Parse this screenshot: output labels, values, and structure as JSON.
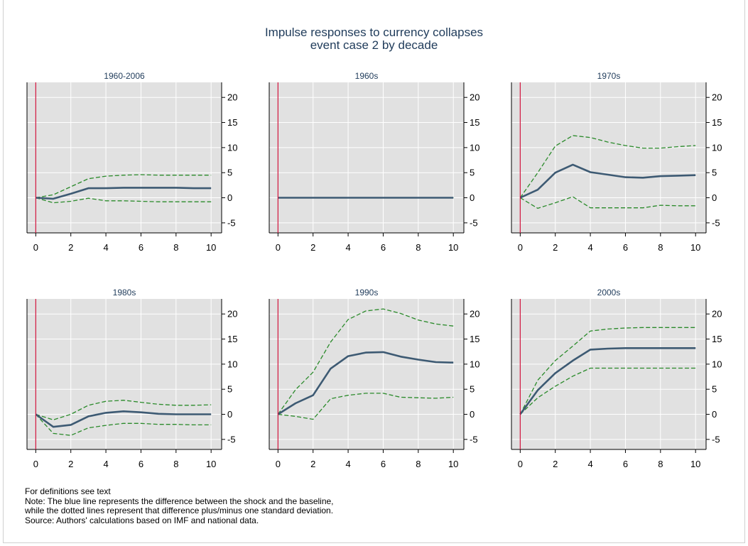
{
  "title": "Impulse responses to currency collapses",
  "subtitle": "event case 2 by decade",
  "notes": [
    "For definitions see text",
    "Note: The blue line represents the difference between the shock and the baseline,",
    "while the dotted lines represent that difference plus/minus one standard deviation.",
    "Source: Authors' calculations based on IMF and national data."
  ],
  "colors": {
    "panel_bg": "#e1e1e1",
    "response": "#3d5a73",
    "band": "#2a8a2a",
    "shock_line": "#d0103a",
    "title": "#1f3b5a"
  },
  "chart_data": [
    {
      "type": "line",
      "title": "1960-2006",
      "x": [
        0,
        1,
        2,
        3,
        4,
        5,
        6,
        7,
        8,
        9,
        10
      ],
      "xticks": [
        0,
        2,
        4,
        6,
        8,
        10
      ],
      "yticks": [
        -5,
        0,
        5,
        10,
        15,
        20
      ],
      "xlim": [
        -0.5,
        10.6
      ],
      "ylim": [
        -7,
        23
      ],
      "grid": true,
      "series": [
        {
          "role": "response",
          "values": [
            0,
            -0.2,
            0.8,
            1.9,
            1.9,
            2.0,
            2.0,
            2.0,
            2.0,
            1.9,
            1.9
          ]
        },
        {
          "role": "upper",
          "values": [
            0,
            0.6,
            2.2,
            3.8,
            4.3,
            4.5,
            4.6,
            4.5,
            4.5,
            4.5,
            4.5
          ]
        },
        {
          "role": "lower",
          "values": [
            0,
            -1.0,
            -0.7,
            -0.1,
            -0.6,
            -0.6,
            -0.7,
            -0.8,
            -0.8,
            -0.8,
            -0.8
          ]
        }
      ]
    },
    {
      "type": "line",
      "title": "1960s",
      "x": [
        0,
        1,
        2,
        3,
        4,
        5,
        6,
        7,
        8,
        9,
        10
      ],
      "xticks": [
        0,
        2,
        4,
        6,
        8,
        10
      ],
      "yticks": [
        -5,
        0,
        5,
        10,
        15,
        20
      ],
      "xlim": [
        -0.5,
        10.6
      ],
      "ylim": [
        -7,
        23
      ],
      "grid": true,
      "series": [
        {
          "role": "response",
          "values": [
            0,
            0,
            0,
            0,
            0,
            0,
            0,
            0,
            0,
            0,
            0
          ]
        },
        {
          "role": "upper",
          "values": [
            0,
            0,
            0,
            0,
            0,
            0,
            0,
            0,
            0,
            0,
            0
          ]
        },
        {
          "role": "lower",
          "values": [
            0,
            0,
            0,
            0,
            0,
            0,
            0,
            0,
            0,
            0,
            0
          ]
        }
      ]
    },
    {
      "type": "line",
      "title": "1970s",
      "x": [
        0,
        1,
        2,
        3,
        4,
        5,
        6,
        7,
        8,
        9,
        10
      ],
      "xticks": [
        0,
        2,
        4,
        6,
        8,
        10
      ],
      "yticks": [
        -5,
        0,
        5,
        10,
        15,
        20
      ],
      "xlim": [
        -0.5,
        10.6
      ],
      "ylim": [
        -7,
        23
      ],
      "grid": true,
      "series": [
        {
          "role": "response",
          "values": [
            0,
            1.6,
            5.0,
            6.6,
            5.1,
            4.6,
            4.1,
            4.0,
            4.3,
            4.4,
            4.5
          ]
        },
        {
          "role": "upper",
          "values": [
            0,
            5.0,
            10.3,
            12.4,
            12.0,
            11.1,
            10.4,
            9.9,
            9.9,
            10.2,
            10.4
          ]
        },
        {
          "role": "lower",
          "values": [
            0,
            -2.1,
            -1.0,
            0.2,
            -2.0,
            -2.0,
            -2.0,
            -2.0,
            -1.5,
            -1.6,
            -1.6
          ]
        }
      ]
    },
    {
      "type": "line",
      "title": "1980s",
      "x": [
        0,
        1,
        2,
        3,
        4,
        5,
        6,
        7,
        8,
        9,
        10
      ],
      "xticks": [
        0,
        2,
        4,
        6,
        8,
        10
      ],
      "yticks": [
        -5,
        0,
        5,
        10,
        15,
        20
      ],
      "xlim": [
        -0.5,
        10.6
      ],
      "ylim": [
        -7,
        23
      ],
      "grid": true,
      "series": [
        {
          "role": "response",
          "values": [
            0,
            -2.5,
            -2.1,
            -0.4,
            0.3,
            0.6,
            0.4,
            0.1,
            0.0,
            0.0,
            0.0
          ]
        },
        {
          "role": "upper",
          "values": [
            0,
            -1.1,
            0,
            1.8,
            2.6,
            2.8,
            2.4,
            2.0,
            1.8,
            1.8,
            1.9
          ]
        },
        {
          "role": "lower",
          "values": [
            0,
            -3.8,
            -4.2,
            -2.7,
            -2.2,
            -1.8,
            -1.8,
            -2.0,
            -2.0,
            -2.1,
            -2.1
          ]
        }
      ]
    },
    {
      "type": "line",
      "title": "1990s",
      "x": [
        0,
        1,
        2,
        3,
        4,
        5,
        6,
        7,
        8,
        9,
        10
      ],
      "xticks": [
        0,
        2,
        4,
        6,
        8,
        10
      ],
      "yticks": [
        -5,
        0,
        5,
        10,
        15,
        20
      ],
      "xlim": [
        -0.5,
        10.6
      ],
      "ylim": [
        -7,
        23
      ],
      "grid": true,
      "series": [
        {
          "role": "response",
          "values": [
            0,
            2.2,
            3.8,
            9.1,
            11.6,
            12.3,
            12.4,
            11.5,
            10.9,
            10.4,
            10.3
          ]
        },
        {
          "role": "upper",
          "values": [
            0,
            4.9,
            8.4,
            14.4,
            18.9,
            20.6,
            21.0,
            20.1,
            18.8,
            18.0,
            17.6
          ]
        },
        {
          "role": "lower",
          "values": [
            0,
            -0.4,
            -1.0,
            3.1,
            3.8,
            4.2,
            4.2,
            3.4,
            3.3,
            3.2,
            3.4
          ]
        }
      ]
    },
    {
      "type": "line",
      "title": "2000s",
      "x": [
        0,
        1,
        2,
        3,
        4,
        5,
        6,
        7,
        8,
        9,
        10
      ],
      "xticks": [
        0,
        2,
        4,
        6,
        8,
        10
      ],
      "yticks": [
        -5,
        0,
        5,
        10,
        15,
        20
      ],
      "xlim": [
        -0.5,
        10.6
      ],
      "ylim": [
        -7,
        23
      ],
      "grid": true,
      "series": [
        {
          "role": "response",
          "values": [
            0,
            4.8,
            8.2,
            10.7,
            12.9,
            13.1,
            13.2,
            13.2,
            13.2,
            13.2,
            13.2
          ]
        },
        {
          "role": "upper",
          "values": [
            0,
            6.8,
            10.7,
            13.6,
            16.6,
            17.0,
            17.2,
            17.3,
            17.3,
            17.3,
            17.3
          ]
        },
        {
          "role": "lower",
          "values": [
            0,
            3.3,
            5.6,
            7.6,
            9.2,
            9.2,
            9.2,
            9.2,
            9.2,
            9.2,
            9.2
          ]
        }
      ]
    }
  ]
}
